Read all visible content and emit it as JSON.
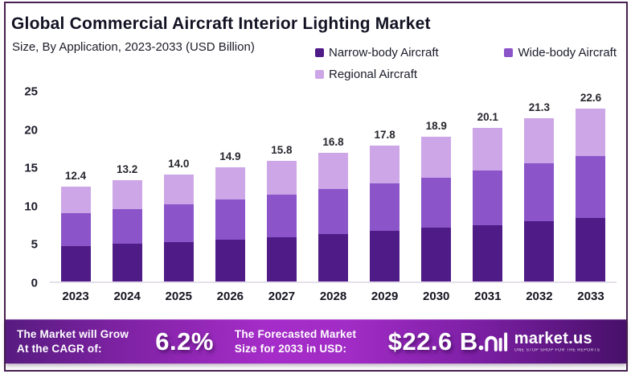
{
  "header": {
    "title": "Global Commercial Aircraft Interior Lighting Market",
    "subtitle": "Size, By Application, 2023-2033 (USD Billion)"
  },
  "legend": [
    {
      "label": "Narrow-body Aircraft",
      "color": "#4f1c87"
    },
    {
      "label": "Wide-body Aircraft",
      "color": "#8b55c9"
    },
    {
      "label": "Regional Aircraft",
      "color": "#cda6e7"
    }
  ],
  "chart_data": {
    "type": "bar",
    "stacked": true,
    "title": "Global Commercial Aircraft Interior Lighting Market",
    "subtitle": "Size, By Application, 2023-2033 (USD Billion)",
    "xlabel": "",
    "ylabel": "",
    "ylim": [
      0,
      25
    ],
    "yticks": [
      0,
      5,
      10,
      15,
      20,
      25
    ],
    "grid": false,
    "legend_position": "top-right",
    "categories": [
      "2023",
      "2024",
      "2025",
      "2026",
      "2027",
      "2028",
      "2029",
      "2030",
      "2031",
      "2032",
      "2033"
    ],
    "totals": [
      12.4,
      13.2,
      14.0,
      14.9,
      15.8,
      16.8,
      17.8,
      18.9,
      20.1,
      21.3,
      22.6
    ],
    "series": [
      {
        "name": "Narrow-body Aircraft",
        "color": "#4f1c87",
        "values": [
          4.6,
          4.9,
          5.2,
          5.5,
          5.8,
          6.2,
          6.6,
          7.0,
          7.4,
          7.9,
          8.3
        ]
      },
      {
        "name": "Wide-body Aircraft",
        "color": "#8b55c9",
        "values": [
          4.3,
          4.6,
          4.9,
          5.2,
          5.5,
          5.9,
          6.2,
          6.6,
          7.1,
          7.5,
          8.1
        ]
      },
      {
        "name": "Regional Aircraft",
        "color": "#cda6e7",
        "values": [
          3.5,
          3.7,
          3.9,
          4.2,
          4.5,
          4.7,
          5.0,
          5.3,
          5.6,
          5.9,
          6.2
        ]
      }
    ]
  },
  "footer": {
    "cagr_label_line1": "The Market will Grow",
    "cagr_label_line2": "At the CAGR of:",
    "cagr_value": "6.2%",
    "forecast_label_line1": "The Forecasted Market",
    "forecast_label_line2": "Size for 2033 in USD:",
    "forecast_value": "$22.6 B",
    "brand_name": "market.us",
    "brand_tagline": "ONE STOP SHOP FOR THE REPORTS"
  },
  "colors": {
    "banner_gradient_left": "#571b80",
    "banner_gradient_mid": "#a52cc8",
    "banner_gradient_right": "#471069",
    "card_border": "#48204f",
    "axis_line": "#e4dfea"
  }
}
